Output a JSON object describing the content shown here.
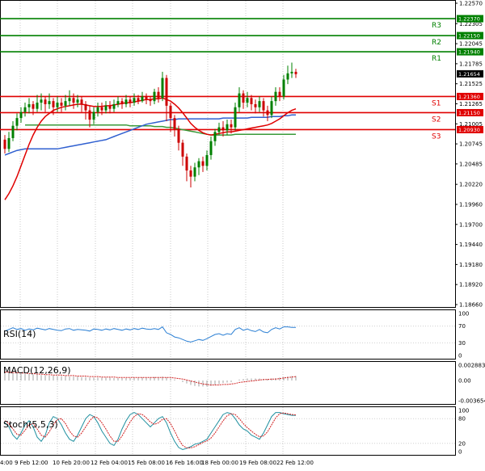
{
  "chart_data": {
    "type": "candlestick",
    "colors": {
      "bull": "#008000",
      "bear": "#cc0000",
      "support": "#e00000",
      "resistance": "#008000",
      "ma_fast": "#e00000",
      "ma_mid": "#3060d0",
      "ma_slow": "#3a9a3a",
      "rsi": "#2a7fd4",
      "macd_hist": "#a0a0a0",
      "macd_signal": "#d02020",
      "stoch_main": "#2090a0",
      "stoch_signal": "#d02020"
    },
    "price_axis": {
      "range": [
        1.1866,
        1.2257
      ],
      "ticks": [
        "1.22570",
        "1.22305",
        "1.22045",
        "1.21785",
        "1.21525",
        "1.21265",
        "1.21005",
        "1.20745",
        "1.20485",
        "1.20220",
        "1.19960",
        "1.19700",
        "1.19440",
        "1.19180",
        "1.18920",
        "1.18660"
      ],
      "current_price": "1.21654"
    },
    "time_axis": [
      "4:00",
      "9 Feb 12:00",
      "10 Feb 20:00",
      "12 Feb 04:00",
      "15 Feb 08:00",
      "16 Feb 16:00",
      "18 Feb 00:00",
      "19 Feb 08:00",
      "22 Feb 12:00"
    ],
    "levels": [
      {
        "name": "R3",
        "price": 1.2237,
        "text": "1.22370",
        "kind": "resistance"
      },
      {
        "name": "R2",
        "price": 1.2215,
        "text": "1.22150",
        "kind": "resistance"
      },
      {
        "name": "R1",
        "price": 1.2194,
        "text": "1.21940",
        "kind": "resistance"
      },
      {
        "name": "S1",
        "price": 1.2136,
        "text": "1.21360",
        "kind": "support"
      },
      {
        "name": "S2",
        "price": 1.2115,
        "text": "1.21150",
        "kind": "support"
      },
      {
        "name": "S3",
        "price": 1.2093,
        "text": "1.20930",
        "kind": "support"
      }
    ],
    "candles": [
      [
        1.208,
        1.2068,
        1.2086,
        1.2062
      ],
      [
        1.2068,
        1.2082,
        1.209,
        1.2064
      ],
      [
        1.2082,
        1.2098,
        1.2104,
        1.2078
      ],
      [
        1.2098,
        1.2108,
        1.2114,
        1.2092
      ],
      [
        1.2108,
        1.2116,
        1.2122,
        1.2102
      ],
      [
        1.2116,
        1.2122,
        1.2128,
        1.211
      ],
      [
        1.2122,
        1.2126,
        1.2134,
        1.2114
      ],
      [
        1.2126,
        1.212,
        1.213,
        1.2112
      ],
      [
        1.212,
        1.2128,
        1.2138,
        1.2116
      ],
      [
        1.2128,
        1.2132,
        1.214,
        1.2118
      ],
      [
        1.2132,
        1.2126,
        1.2136,
        1.2116
      ],
      [
        1.2126,
        1.213,
        1.214,
        1.212
      ],
      [
        1.213,
        1.2122,
        1.2134,
        1.2112
      ],
      [
        1.2122,
        1.2128,
        1.2136,
        1.2116
      ],
      [
        1.2128,
        1.2124,
        1.2134,
        1.2116
      ],
      [
        1.2124,
        1.213,
        1.2138,
        1.2118
      ],
      [
        1.213,
        1.2134,
        1.2144,
        1.2124
      ],
      [
        1.2134,
        1.2128,
        1.214,
        1.212
      ],
      [
        1.2128,
        1.2132,
        1.2138,
        1.2122
      ],
      [
        1.2132,
        1.2126,
        1.2136,
        1.2116
      ],
      [
        1.2126,
        1.2118,
        1.213,
        1.2106
      ],
      [
        1.2118,
        1.2106,
        1.2124,
        1.2096
      ],
      [
        1.2106,
        1.2116,
        1.2122,
        1.21
      ],
      [
        1.2116,
        1.2122,
        1.2128,
        1.211
      ],
      [
        1.2122,
        1.2118,
        1.2128,
        1.2112
      ],
      [
        1.2118,
        1.2124,
        1.213,
        1.2114
      ],
      [
        1.2124,
        1.212,
        1.213,
        1.2114
      ],
      [
        1.212,
        1.2126,
        1.2132,
        1.2116
      ],
      [
        1.2126,
        1.213,
        1.2136,
        1.2122
      ],
      [
        1.213,
        1.2126,
        1.2134,
        1.212
      ],
      [
        1.2126,
        1.2132,
        1.2138,
        1.2122
      ],
      [
        1.2132,
        1.2128,
        1.2136,
        1.2122
      ],
      [
        1.2128,
        1.2134,
        1.214,
        1.2124
      ],
      [
        1.2134,
        1.213,
        1.2138,
        1.2126
      ],
      [
        1.213,
        1.2136,
        1.2142,
        1.2128
      ],
      [
        1.2136,
        1.2132,
        1.214,
        1.2126
      ],
      [
        1.2132,
        1.213,
        1.2136,
        1.2124
      ],
      [
        1.213,
        1.2142,
        1.2146,
        1.2126
      ],
      [
        1.2142,
        1.2134,
        1.2148,
        1.2128
      ],
      [
        1.2134,
        1.216,
        1.2168,
        1.213
      ],
      [
        1.216,
        1.2124,
        1.2164,
        1.2104
      ],
      [
        1.2124,
        1.2108,
        1.2128,
        1.209
      ],
      [
        1.2108,
        1.2094,
        1.2112,
        1.2084
      ],
      [
        1.2094,
        1.2076,
        1.2098,
        1.2066
      ],
      [
        1.2076,
        1.2058,
        1.208,
        1.2046
      ],
      [
        1.2058,
        1.204,
        1.2062,
        1.2026
      ],
      [
        1.204,
        1.2032,
        1.2046,
        1.2018
      ],
      [
        1.2032,
        1.2044,
        1.205,
        1.2026
      ],
      [
        1.2044,
        1.2052,
        1.2056,
        1.2034
      ],
      [
        1.2052,
        1.2046,
        1.2058,
        1.2038
      ],
      [
        1.2046,
        1.206,
        1.2066,
        1.204
      ],
      [
        1.206,
        1.2078,
        1.2084,
        1.2054
      ],
      [
        1.2078,
        1.209,
        1.2094,
        1.2072
      ],
      [
        1.209,
        1.2096,
        1.2102,
        1.2086
      ],
      [
        1.2096,
        1.2092,
        1.2104,
        1.2084
      ],
      [
        1.2092,
        1.21,
        1.2106,
        1.2086
      ],
      [
        1.21,
        1.2096,
        1.2106,
        1.2088
      ],
      [
        1.2096,
        1.2122,
        1.2128,
        1.2092
      ],
      [
        1.2122,
        1.214,
        1.2148,
        1.2116
      ],
      [
        1.214,
        1.2128,
        1.2144,
        1.212
      ],
      [
        1.2128,
        1.2134,
        1.2142,
        1.2122
      ],
      [
        1.2134,
        1.2126,
        1.2138,
        1.2118
      ],
      [
        1.2126,
        1.2122,
        1.2132,
        1.2114
      ],
      [
        1.2122,
        1.213,
        1.2136,
        1.2116
      ],
      [
        1.213,
        1.2118,
        1.2134,
        1.211
      ],
      [
        1.2118,
        1.2112,
        1.2124,
        1.2104
      ],
      [
        1.2112,
        1.213,
        1.2136,
        1.2108
      ],
      [
        1.213,
        1.2142,
        1.2148,
        1.2124
      ],
      [
        1.2142,
        1.2136,
        1.2148,
        1.213
      ],
      [
        1.2136,
        1.2158,
        1.2164,
        1.2132
      ],
      [
        1.2158,
        1.2166,
        1.2176,
        1.2152
      ],
      [
        1.2166,
        1.2168,
        1.218,
        1.216
      ],
      [
        1.2168,
        1.2165,
        1.2172,
        1.216
      ]
    ],
    "ma_fast": [
      1.2002,
      1.201,
      1.202,
      1.2032,
      1.2046,
      1.206,
      1.2074,
      1.2086,
      1.2096,
      1.2104,
      1.211,
      1.2114,
      1.2118,
      1.212,
      1.2122,
      1.2123,
      1.2124,
      1.2125,
      1.2126,
      1.2126,
      1.2125,
      1.2124,
      1.2123,
      1.2123,
      1.2123,
      1.2124,
      1.2124,
      1.2125,
      1.2126,
      1.2127,
      1.2128,
      1.2128,
      1.2129,
      1.213,
      1.2131,
      1.2132,
      1.2132,
      1.2133,
      1.2133,
      1.2134,
      1.2132,
      1.213,
      1.2126,
      1.2121,
      1.2115,
      1.2108,
      1.2101,
      1.2096,
      1.2092,
      1.2089,
      1.2087,
      1.2086,
      1.2087,
      1.2088,
      1.2089,
      1.209,
      1.209,
      1.2091,
      1.2092,
      1.2093,
      1.2094,
      1.2095,
      1.2096,
      1.2097,
      1.2098,
      1.2099,
      1.2101,
      1.2104,
      1.2107,
      1.2111,
      1.2115,
      1.2118,
      1.212
    ],
    "ma_mid": [
      1.206,
      1.2062,
      1.2064,
      1.2066,
      1.2067,
      1.2068,
      1.2068,
      1.2068,
      1.2068,
      1.2068,
      1.2068,
      1.2068,
      1.2068,
      1.2068,
      1.2069,
      1.207,
      1.2071,
      1.2072,
      1.2073,
      1.2074,
      1.2075,
      1.2076,
      1.2077,
      1.2078,
      1.2079,
      1.208,
      1.2082,
      1.2084,
      1.2086,
      1.2088,
      1.209,
      1.2092,
      1.2094,
      1.2096,
      1.2098,
      1.21,
      1.2101,
      1.2102,
      1.2103,
      1.2104,
      1.2105,
      1.2106,
      1.2106,
      1.2107,
      1.2107,
      1.2107,
      1.2107,
      1.2107,
      1.2107,
      1.2107,
      1.2107,
      1.2107,
      1.2107,
      1.2107,
      1.2108,
      1.2108,
      1.2108,
      1.2108,
      1.2108,
      1.2108,
      1.2108,
      1.2109,
      1.2109,
      1.2109,
      1.2109,
      1.2109,
      1.211,
      1.211,
      1.211,
      1.2111,
      1.2111,
      1.2112,
      1.2112
    ],
    "ma_slow": [
      null,
      null,
      null,
      null,
      null,
      1.2099,
      1.2099,
      1.2099,
      1.2099,
      1.2099,
      1.2099,
      1.2099,
      1.2099,
      1.2099,
      1.2099,
      1.2099,
      1.2099,
      1.2099,
      1.2099,
      1.2099,
      1.2099,
      1.2099,
      1.2099,
      1.2099,
      1.2099,
      1.2099,
      1.2099,
      1.2099,
      1.2099,
      1.2099,
      1.2099,
      1.2098,
      1.2098,
      1.2098,
      1.2098,
      1.2098,
      1.2098,
      1.2097,
      1.2097,
      1.2097,
      1.2096,
      1.2096,
      1.2095,
      1.2094,
      1.2093,
      1.2092,
      1.2091,
      1.209,
      1.2089,
      1.2088,
      1.2087,
      1.2086,
      1.2086,
      1.2086,
      1.2086,
      1.2086,
      1.2086,
      1.2087,
      1.2087,
      1.2087,
      1.2087,
      1.2087,
      1.2087,
      1.2087,
      1.2087,
      1.2087,
      1.2087,
      1.2087,
      1.2087,
      1.2087,
      1.2087,
      1.2087,
      1.2087
    ],
    "rsi": {
      "label": "RSI(14)",
      "range": [
        0,
        100
      ],
      "ticks": [
        "100",
        "70",
        "30",
        "0"
      ],
      "values": [
        58,
        62,
        66,
        62,
        64,
        60,
        63,
        61,
        65,
        63,
        61,
        64,
        62,
        60,
        59,
        63,
        64,
        60,
        62,
        61,
        60,
        58,
        63,
        62,
        60,
        63,
        61,
        64,
        62,
        60,
        63,
        61,
        64,
        62,
        65,
        63,
        62,
        64,
        62,
        68,
        54,
        50,
        44,
        42,
        38,
        34,
        32,
        35,
        38,
        36,
        40,
        45,
        50,
        52,
        48,
        52,
        50,
        62,
        66,
        60,
        63,
        59,
        57,
        62,
        56,
        54,
        62,
        66,
        63,
        68,
        68,
        67,
        67
      ]
    },
    "macd": {
      "label": "MACD(12,26,9)",
      "ticks": [
        "0.002883",
        "0.00",
        "-0.003654"
      ],
      "hist_max": 0.0018,
      "hist": [
        0.0018,
        0.0017,
        0.0016,
        0.0015,
        0.0014,
        0.0013,
        0.0013,
        0.0012,
        0.0012,
        0.0011,
        0.0011,
        0.001,
        0.001,
        0.0009,
        0.0009,
        0.0009,
        0.0008,
        0.0008,
        0.0008,
        0.0007,
        0.0007,
        0.0006,
        0.0006,
        0.0006,
        0.0006,
        0.0006,
        0.0006,
        0.0005,
        0.0005,
        0.0005,
        0.0005,
        0.0005,
        0.0006,
        0.0006,
        0.0006,
        0.0006,
        0.0006,
        0.0007,
        0.0007,
        0.0008,
        0.0006,
        0.0004,
        0.0002,
        0.0,
        -0.0003,
        -0.0006,
        -0.0009,
        -0.0011,
        -0.0012,
        -0.0012,
        -0.0012,
        -0.0011,
        -0.0009,
        -0.0007,
        -0.0005,
        -0.0004,
        -0.0003,
        0.0,
        0.0002,
        0.0003,
        0.0004,
        0.0004,
        0.0004,
        0.0004,
        0.0003,
        0.0003,
        0.0004,
        0.0005,
        0.0006,
        0.0007,
        0.0008,
        0.0009,
        0.0009
      ],
      "signal": [
        0.0017,
        0.0017,
        0.0016,
        0.0016,
        0.0015,
        0.0015,
        0.0014,
        0.0014,
        0.0013,
        0.0013,
        0.0012,
        0.0012,
        0.0011,
        0.0011,
        0.0011,
        0.001,
        0.001,
        0.001,
        0.0009,
        0.0009,
        0.0009,
        0.0008,
        0.0008,
        0.0008,
        0.0007,
        0.0007,
        0.0007,
        0.0007,
        0.0006,
        0.0006,
        0.0006,
        0.0006,
        0.0006,
        0.0006,
        0.0006,
        0.0006,
        0.0006,
        0.0006,
        0.0006,
        0.0006,
        0.0006,
        0.0006,
        0.0005,
        0.0004,
        0.0003,
        0.0001,
        -0.0001,
        -0.0003,
        -0.0005,
        -0.0007,
        -0.0008,
        -0.0009,
        -0.0009,
        -0.0009,
        -0.0008,
        -0.0008,
        -0.0007,
        -0.0006,
        -0.0004,
        -0.0003,
        -0.0002,
        -0.0001,
        0.0,
        0.0001,
        0.0002,
        0.0002,
        0.0003,
        0.0003,
        0.0004,
        0.0005,
        0.0006,
        0.0007,
        0.0008
      ]
    },
    "stoch": {
      "label": "Stoch(5,5,3)",
      "range": [
        0,
        100
      ],
      "ticks": [
        "100",
        "80",
        "20",
        "0"
      ],
      "main": [
        70,
        60,
        40,
        30,
        45,
        65,
        75,
        60,
        35,
        25,
        40,
        70,
        85,
        80,
        65,
        45,
        30,
        25,
        40,
        60,
        80,
        90,
        85,
        70,
        50,
        35,
        20,
        15,
        30,
        55,
        75,
        90,
        95,
        90,
        80,
        70,
        60,
        70,
        80,
        85,
        70,
        45,
        25,
        10,
        5,
        8,
        12,
        18,
        20,
        25,
        30,
        45,
        60,
        75,
        90,
        95,
        92,
        80,
        65,
        55,
        50,
        40,
        35,
        30,
        45,
        65,
        85,
        95,
        95,
        92,
        90,
        88,
        88
      ],
      "signal": [
        75,
        68,
        55,
        42,
        40,
        52,
        65,
        68,
        55,
        40,
        35,
        48,
        65,
        78,
        80,
        68,
        50,
        38,
        35,
        45,
        60,
        75,
        85,
        82,
        70,
        55,
        38,
        25,
        25,
        38,
        55,
        72,
        85,
        92,
        90,
        82,
        72,
        66,
        70,
        78,
        80,
        68,
        50,
        30,
        15,
        9,
        9,
        12,
        17,
        22,
        26,
        33,
        45,
        60,
        75,
        87,
        92,
        90,
        80,
        68,
        58,
        50,
        42,
        36,
        38,
        48,
        65,
        82,
        92,
        94,
        92,
        90,
        89
      ]
    }
  }
}
